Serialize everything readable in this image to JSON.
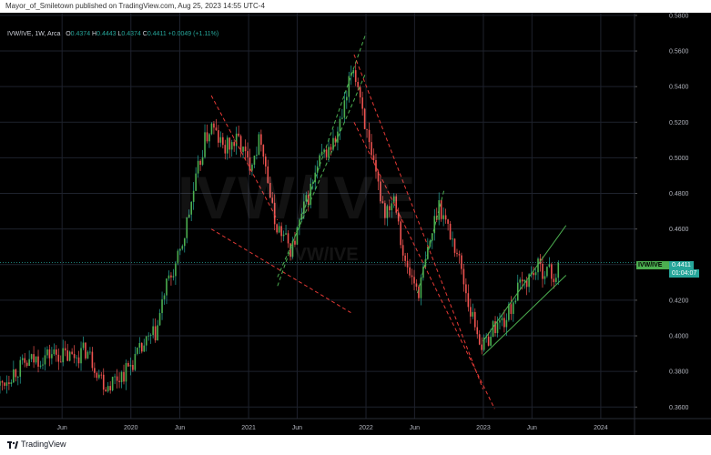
{
  "header": {
    "publisher_line": "Mayor_of_Smiletown published on TradingView.com, Aug 25, 2023 14:55 UTC-4"
  },
  "legend": {
    "symbol": "IVW/IVE, 1W, Arca",
    "open_label": "O",
    "open": "0.4374",
    "high_label": "H",
    "high": "0.4443",
    "low_label": "L",
    "low": "0.4374",
    "close_label": "C",
    "close": "0.4411",
    "change": "+0.0049 (+1.11%)"
  },
  "watermark": {
    "symbol": "IVW/IVE",
    "subtitle": "IVW/IVE"
  },
  "price_tag": {
    "symbol": "IVW/IVE",
    "value": "0.4411",
    "countdown": "01:04:07"
  },
  "footer": {
    "brand": "TradingView"
  },
  "colors": {
    "up": "#26a69a",
    "down": "#ef5350",
    "up_body": "#4caf50",
    "grid": "#1e222d",
    "channel_green": "#4caf50",
    "channel_red": "#e53935",
    "axis_text": "#b2b5be"
  },
  "chart_data": {
    "type": "candlestick",
    "interval": "1W",
    "y_ticks": [
      "0.3600",
      "0.3800",
      "0.4000",
      "0.4200",
      "0.4400",
      "0.4600",
      "0.4800",
      "0.5000",
      "0.5200",
      "0.5400",
      "0.5600",
      "0.5800"
    ],
    "x_ticks": [
      {
        "label": "Jun",
        "date": "2019-06-01"
      },
      {
        "label": "2020",
        "date": "2020-01-01"
      },
      {
        "label": "Jun",
        "date": "2020-06-01"
      },
      {
        "label": "2021",
        "date": "2021-01-01"
      },
      {
        "label": "Jun",
        "date": "2021-06-01"
      },
      {
        "label": "2022",
        "date": "2022-01-01"
      },
      {
        "label": "Jun",
        "date": "2022-06-01"
      },
      {
        "label": "2023",
        "date": "2023-01-01"
      },
      {
        "label": "Jun",
        "date": "2023-06-01"
      },
      {
        "label": "2024",
        "date": "2024-01-01"
      }
    ],
    "x_range": [
      "2018-11-20",
      "2024-04-15"
    ],
    "y_range": [
      0.3535,
      0.5815
    ],
    "current_close": 0.4411,
    "price_path": [
      [
        "2018-11-20",
        0.372
      ],
      [
        "2019-01-01",
        0.38
      ],
      [
        "2019-03-01",
        0.386
      ],
      [
        "2019-05-01",
        0.39
      ],
      [
        "2019-07-01",
        0.388
      ],
      [
        "2019-08-15",
        0.392
      ],
      [
        "2019-10-15",
        0.372
      ],
      [
        "2019-12-15",
        0.38
      ],
      [
        "2020-02-15",
        0.395
      ],
      [
        "2020-03-20",
        0.402
      ],
      [
        "2020-04-15",
        0.425
      ],
      [
        "2020-06-01",
        0.445
      ],
      [
        "2020-07-01",
        0.47
      ],
      [
        "2020-08-15",
        0.508
      ],
      [
        "2020-09-07",
        0.518
      ],
      [
        "2020-10-15",
        0.505
      ],
      [
        "2020-12-01",
        0.51
      ],
      [
        "2021-01-01",
        0.496
      ],
      [
        "2021-02-10",
        0.512
      ],
      [
        "2021-03-20",
        0.465
      ],
      [
        "2021-05-15",
        0.448
      ],
      [
        "2021-06-20",
        0.47
      ],
      [
        "2021-08-15",
        0.5
      ],
      [
        "2021-09-30",
        0.51
      ],
      [
        "2021-11-01",
        0.532
      ],
      [
        "2021-11-20",
        0.553
      ],
      [
        "2021-12-15",
        0.535
      ],
      [
        "2022-01-15",
        0.5
      ],
      [
        "2022-03-01",
        0.47
      ],
      [
        "2022-04-01",
        0.48
      ],
      [
        "2022-05-01",
        0.44
      ],
      [
        "2022-06-15",
        0.425
      ],
      [
        "2022-08-15",
        0.475
      ],
      [
        "2022-09-10",
        0.462
      ],
      [
        "2022-10-15",
        0.445
      ],
      [
        "2022-11-20",
        0.415
      ],
      [
        "2022-12-31",
        0.393
      ],
      [
        "2023-02-01",
        0.405
      ],
      [
        "2023-03-15",
        0.41
      ],
      [
        "2023-04-15",
        0.425
      ],
      [
        "2023-06-15",
        0.438
      ],
      [
        "2023-07-20",
        0.437
      ],
      [
        "2023-08-10",
        0.432
      ],
      [
        "2023-08-25",
        0.4411
      ]
    ],
    "trend_lines": [
      {
        "style": "dashed",
        "color": "red",
        "from": [
          "2020-09-07",
          0.535
        ],
        "to": [
          "2021-04-01",
          0.465
        ]
      },
      {
        "style": "dashed",
        "color": "red",
        "from": [
          "2020-09-07",
          0.46
        ],
        "to": [
          "2021-11-15",
          0.413
        ]
      },
      {
        "style": "dashed",
        "color": "green",
        "from": [
          "2021-04-01",
          0.428
        ],
        "to": [
          "2022-01-01",
          0.57
        ]
      },
      {
        "style": "dashed",
        "color": "green",
        "from": [
          "2021-04-01",
          0.433
        ],
        "to": [
          "2022-01-01",
          0.548
        ]
      },
      {
        "style": "dashed",
        "color": "red",
        "from": [
          "2021-11-25",
          0.558
        ],
        "to": [
          "2022-12-31",
          0.37
        ]
      },
      {
        "style": "dashed",
        "color": "red",
        "from": [
          "2021-11-25",
          0.52
        ],
        "to": [
          "2023-02-05",
          0.359
        ]
      },
      {
        "style": "dashed",
        "color": "green",
        "from": [
          "2022-06-10",
          0.424
        ],
        "to": [
          "2022-09-01",
          0.482
        ]
      },
      {
        "style": "solid",
        "color": "green",
        "from": [
          "2022-12-31",
          0.397
        ],
        "to": [
          "2023-09-15",
          0.462
        ]
      },
      {
        "style": "solid",
        "color": "green",
        "from": [
          "2022-12-31",
          0.389
        ],
        "to": [
          "2023-09-15",
          0.434
        ]
      }
    ]
  }
}
